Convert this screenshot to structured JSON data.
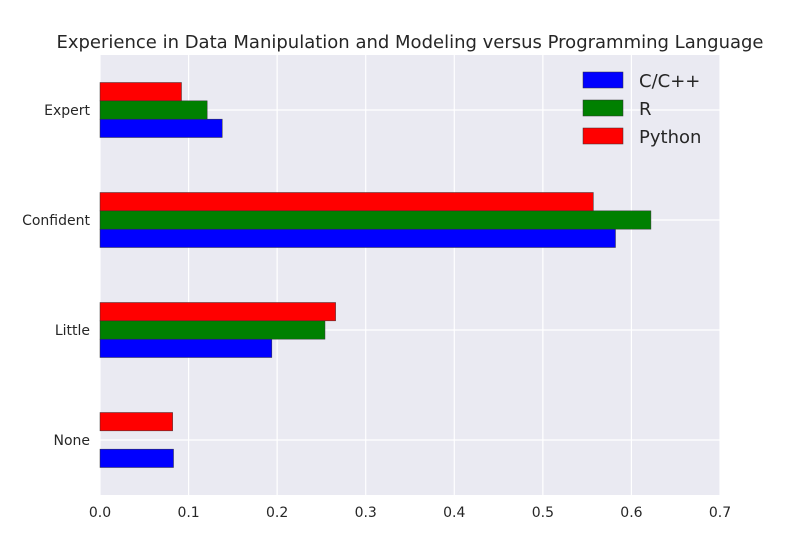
{
  "chart_data": {
    "type": "bar",
    "orientation": "horizontal",
    "title": "Experience in Data Manipulation and Modeling versus Programming Language",
    "xlabel": "",
    "ylabel": "",
    "categories": [
      "None",
      "Little",
      "Confident",
      "Expert"
    ],
    "xlim": [
      0.0,
      0.7
    ],
    "xticks": [
      "0.0",
      "0.1",
      "0.2",
      "0.3",
      "0.4",
      "0.5",
      "0.6",
      "0.7"
    ],
    "grid": true,
    "legend_position": "top-right",
    "series": [
      {
        "name": "C/C++",
        "color": "#0000ff",
        "values": [
          0.083,
          0.194,
          0.582,
          0.138
        ]
      },
      {
        "name": "R",
        "color": "#008000",
        "values": [
          0.0,
          0.254,
          0.622,
          0.121
        ]
      },
      {
        "name": "Python",
        "color": "#ff0000",
        "values": [
          0.082,
          0.266,
          0.557,
          0.092
        ]
      }
    ]
  }
}
